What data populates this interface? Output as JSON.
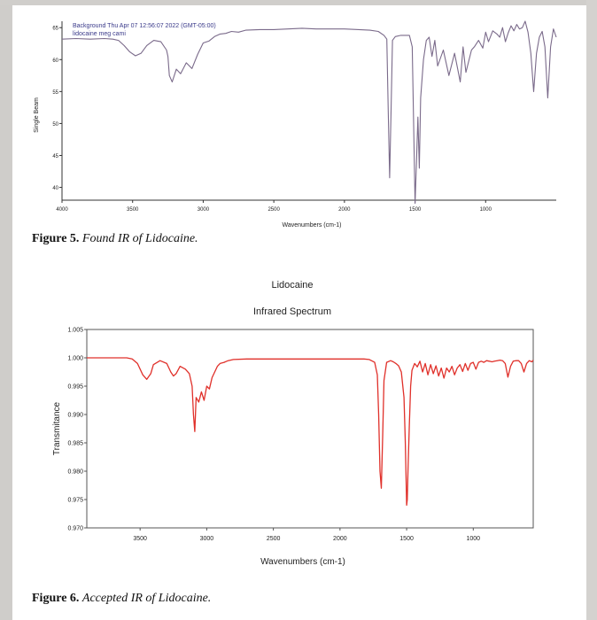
{
  "figure5": {
    "caption_label": "Figure 5.",
    "caption_text": "Found IR of Lidocaine.",
    "legend_line1": "Background  Thu Apr 07 12:56:07 2022 (GMT-05:00)",
    "legend_line2": "lidocaine meg cami",
    "colors": {
      "line": "#7a6a8a",
      "axis": "#333333"
    }
  },
  "figure6": {
    "caption_label": "Figure 6.",
    "caption_text": "Accepted IR of Lidocaine.",
    "colors": {
      "line": "#e0302a",
      "axis": "#555555"
    }
  },
  "chart_data": [
    {
      "type": "line",
      "title": "",
      "xlabel": "Wavenumbers (cm-1)",
      "ylabel": "Single Beam",
      "xlim": [
        4000,
        500
      ],
      "ylim": [
        38,
        66
      ],
      "xticks": [
        4000,
        3500,
        3000,
        2500,
        2000,
        1500,
        1000
      ],
      "yticks": [
        65,
        60,
        55,
        50,
        45,
        40
      ],
      "grid": false,
      "x": [
        4000,
        3900,
        3800,
        3700,
        3640,
        3600,
        3560,
        3520,
        3480,
        3440,
        3400,
        3350,
        3300,
        3260,
        3250,
        3240,
        3220,
        3190,
        3160,
        3120,
        3080,
        3040,
        3000,
        2960,
        2920,
        2880,
        2840,
        2800,
        2750,
        2700,
        2600,
        2500,
        2400,
        2300,
        2200,
        2100,
        2000,
        1900,
        1820,
        1760,
        1720,
        1700,
        1690,
        1680,
        1670,
        1660,
        1640,
        1600,
        1540,
        1520,
        1500,
        1490,
        1480,
        1470,
        1460,
        1440,
        1420,
        1400,
        1380,
        1360,
        1340,
        1300,
        1260,
        1220,
        1180,
        1160,
        1140,
        1100,
        1080,
        1050,
        1020,
        1000,
        980,
        950,
        920,
        900,
        880,
        860,
        840,
        820,
        800,
        780,
        760,
        740,
        720,
        700,
        680,
        660,
        640,
        620,
        600,
        580,
        560,
        540,
        520,
        500
      ],
      "series": [
        {
          "values": [
            63.2,
            63.3,
            63.2,
            63.3,
            63.2,
            63.0,
            62.2,
            61.2,
            60.6,
            61.0,
            62.2,
            63.0,
            62.8,
            61.5,
            60.5,
            57.5,
            56.5,
            58.5,
            57.8,
            59.5,
            58.6,
            60.8,
            62.6,
            62.9,
            63.6,
            64.0,
            64.1,
            64.4,
            64.3,
            64.6,
            64.7,
            64.7,
            64.8,
            64.9,
            64.8,
            64.8,
            64.8,
            64.7,
            64.6,
            64.4,
            63.8,
            63.2,
            52.0,
            41.5,
            52.0,
            63.0,
            63.6,
            63.8,
            63.8,
            62.0,
            37.5,
            44.0,
            51.0,
            43.0,
            54.0,
            60.0,
            63.0,
            63.5,
            60.5,
            63.0,
            59.0,
            61.5,
            57.5,
            61.0,
            56.5,
            62.0,
            58.0,
            61.5,
            62.0,
            63.0,
            61.8,
            64.3,
            62.8,
            64.5,
            64.0,
            63.5,
            65.0,
            62.8,
            64.2,
            65.3,
            64.5,
            65.5,
            64.8,
            65.0,
            66.0,
            64.3,
            61.0,
            55.0,
            61.0,
            63.5,
            64.4,
            62.0,
            54.0,
            62.0,
            64.8,
            63.5
          ]
        }
      ]
    },
    {
      "type": "line",
      "title": "Lidocaine",
      "subtitle": "Infrared Spectrum",
      "xlabel": "Wavenumbers (cm-1)",
      "ylabel": "Transmitance",
      "xlim": [
        3900,
        550
      ],
      "ylim": [
        0.97,
        1.005
      ],
      "xticks": [
        3500,
        3000,
        2500,
        2000,
        1500,
        1000
      ],
      "yticks": [
        1.005,
        1.0,
        0.995,
        0.99,
        0.985,
        0.98,
        0.975,
        0.97
      ],
      "grid": false,
      "x": [
        3900,
        3800,
        3700,
        3600,
        3560,
        3520,
        3480,
        3450,
        3420,
        3400,
        3350,
        3300,
        3270,
        3250,
        3230,
        3200,
        3160,
        3130,
        3110,
        3100,
        3090,
        3080,
        3060,
        3040,
        3020,
        3000,
        2980,
        2960,
        2940,
        2920,
        2900,
        2870,
        2840,
        2800,
        2700,
        2600,
        2500,
        2400,
        2300,
        2200,
        2100,
        2000,
        1900,
        1820,
        1780,
        1740,
        1720,
        1710,
        1700,
        1690,
        1680,
        1670,
        1650,
        1620,
        1600,
        1580,
        1560,
        1540,
        1520,
        1510,
        1500,
        1495,
        1490,
        1480,
        1470,
        1460,
        1440,
        1420,
        1400,
        1380,
        1360,
        1340,
        1320,
        1300,
        1280,
        1260,
        1240,
        1220,
        1200,
        1180,
        1160,
        1140,
        1120,
        1100,
        1080,
        1060,
        1040,
        1020,
        1000,
        980,
        960,
        940,
        920,
        900,
        880,
        860,
        840,
        820,
        800,
        780,
        760,
        740,
        720,
        700,
        680,
        660,
        640,
        620,
        600,
        580,
        560,
        550
      ],
      "series": [
        {
          "values": [
            1.0,
            1.0,
            1.0,
            1.0,
            0.9998,
            0.999,
            0.997,
            0.9962,
            0.9972,
            0.9988,
            0.9995,
            0.999,
            0.9975,
            0.9968,
            0.9972,
            0.9985,
            0.998,
            0.9972,
            0.995,
            0.99,
            0.987,
            0.993,
            0.9922,
            0.994,
            0.9925,
            0.995,
            0.9945,
            0.9965,
            0.9975,
            0.9985,
            0.999,
            0.9992,
            0.9995,
            0.9997,
            0.9998,
            0.9998,
            0.9998,
            0.9998,
            0.9998,
            0.9998,
            0.9998,
            0.9998,
            0.9998,
            0.9998,
            0.9997,
            0.9992,
            0.997,
            0.99,
            0.98,
            0.977,
            0.986,
            0.996,
            0.9992,
            0.9995,
            0.9993,
            0.999,
            0.9986,
            0.9975,
            0.993,
            0.985,
            0.974,
            0.975,
            0.98,
            0.988,
            0.995,
            0.9978,
            0.999,
            0.9984,
            0.9994,
            0.9975,
            0.999,
            0.997,
            0.9988,
            0.9972,
            0.9986,
            0.9968,
            0.9982,
            0.9964,
            0.9982,
            0.9975,
            0.9985,
            0.997,
            0.9982,
            0.9988,
            0.9976,
            0.999,
            0.9978,
            0.999,
            0.9992,
            0.998,
            0.9992,
            0.9994,
            0.9992,
            0.9995,
            0.9994,
            0.9993,
            0.9994,
            0.9995,
            0.9996,
            0.9995,
            0.999,
            0.9966,
            0.9985,
            0.9994,
            0.9995,
            0.9995,
            0.999,
            0.9975,
            0.999,
            0.9995,
            0.9993,
            0.9996
          ]
        }
      ]
    }
  ]
}
